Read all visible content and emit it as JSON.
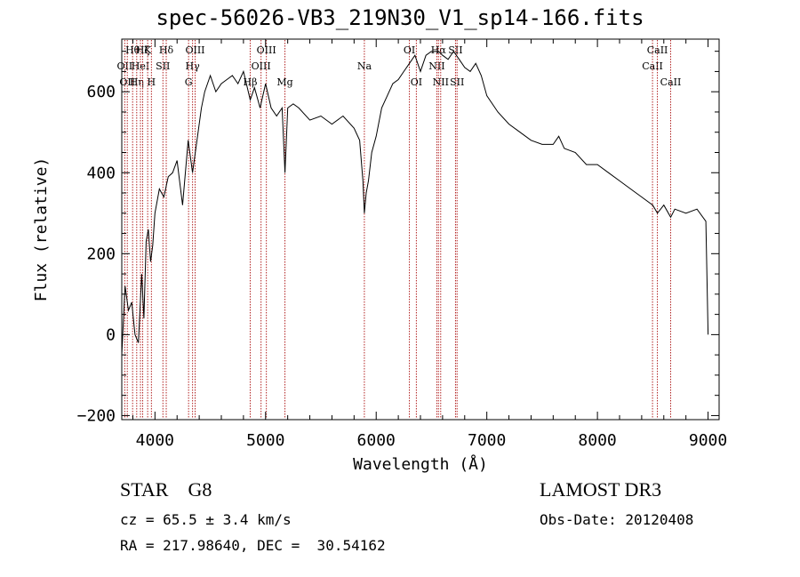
{
  "chart_data": {
    "type": "line",
    "title": "spec-56026-VB3_219N30_V1_sp14-166.fits",
    "xlabel": "Wavelength (Å)",
    "ylabel": "Flux (relative)",
    "xlim": [
      3700,
      9100
    ],
    "ylim": [
      -210,
      730
    ],
    "xticks": [
      4000,
      5000,
      6000,
      7000,
      8000,
      9000
    ],
    "yticks": [
      -200,
      0,
      200,
      400,
      600
    ],
    "grid": false,
    "line_color": "#000000",
    "marker_line_color": "#b22222",
    "series": [
      {
        "x": [
          3700,
          3730,
          3760,
          3790,
          3820,
          3850,
          3880,
          3900,
          3920,
          3940,
          3960,
          3980,
          4000,
          4040,
          4080,
          4120,
          4160,
          4200,
          4250,
          4300,
          4340,
          4380,
          4420,
          4450,
          4500,
          4550,
          4600,
          4650,
          4700,
          4750,
          4800,
          4861,
          4900,
          4950,
          5000,
          5050,
          5100,
          5150,
          5175,
          5200,
          5250,
          5300,
          5400,
          5500,
          5600,
          5700,
          5800,
          5850,
          5880,
          5893,
          5910,
          5930,
          5960,
          6000,
          6050,
          6100,
          6150,
          6200,
          6250,
          6300,
          6350,
          6400,
          6450,
          6500,
          6563,
          6600,
          6650,
          6700,
          6750,
          6800,
          6850,
          6900,
          6950,
          7000,
          7100,
          7200,
          7300,
          7400,
          7500,
          7600,
          7650,
          7700,
          7800,
          7900,
          8000,
          8100,
          8200,
          8300,
          8400,
          8500,
          8542,
          8600,
          8662,
          8700,
          8800,
          8900,
          8980,
          9000
        ],
        "y": [
          -50,
          120,
          60,
          80,
          0,
          -20,
          150,
          40,
          230,
          260,
          180,
          220,
          300,
          360,
          340,
          390,
          400,
          430,
          320,
          480,
          400,
          480,
          560,
          600,
          640,
          600,
          620,
          630,
          640,
          620,
          650,
          580,
          610,
          560,
          620,
          560,
          540,
          560,
          400,
          560,
          570,
          560,
          530,
          540,
          520,
          540,
          510,
          480,
          380,
          300,
          350,
          380,
          450,
          490,
          560,
          590,
          620,
          630,
          650,
          670,
          690,
          650,
          690,
          700,
          700,
          690,
          680,
          700,
          680,
          660,
          650,
          670,
          640,
          590,
          550,
          520,
          500,
          480,
          470,
          470,
          490,
          460,
          450,
          420,
          420,
          400,
          380,
          360,
          340,
          320,
          300,
          320,
          290,
          310,
          300,
          310,
          280,
          0
        ]
      }
    ],
    "line_markers": [
      {
        "wavelength": 3727,
        "label": "OII",
        "row": 2
      },
      {
        "wavelength": 3750,
        "label": "OII",
        "row": 3
      },
      {
        "wavelength": 3798,
        "label": "Hθ",
        "row": 1
      },
      {
        "wavelength": 3835,
        "label": "Hη",
        "row": 3
      },
      {
        "wavelength": 3869,
        "label": "HeI",
        "row": 2
      },
      {
        "wavelength": 3889,
        "label": "Hζ",
        "row": 1
      },
      {
        "wavelength": 3934,
        "label": "K",
        "row": 1
      },
      {
        "wavelength": 3968,
        "label": "H",
        "row": 3
      },
      {
        "wavelength": 4072,
        "label": "SII",
        "row": 2
      },
      {
        "wavelength": 4102,
        "label": "Hδ",
        "row": 1
      },
      {
        "wavelength": 4304,
        "label": "G",
        "row": 3
      },
      {
        "wavelength": 4340,
        "label": "Hγ",
        "row": 2
      },
      {
        "wavelength": 4363,
        "label": "OIII",
        "row": 1
      },
      {
        "wavelength": 4861,
        "label": "Hβ",
        "row": 3
      },
      {
        "wavelength": 4959,
        "label": "OIII",
        "row": 2
      },
      {
        "wavelength": 5007,
        "label": "OIII",
        "row": 1
      },
      {
        "wavelength": 5175,
        "label": "Mg",
        "row": 3
      },
      {
        "wavelength": 5893,
        "label": "Na",
        "row": 2
      },
      {
        "wavelength": 6300,
        "label": "OI",
        "row": 1
      },
      {
        "wavelength": 6363,
        "label": "OI",
        "row": 3
      },
      {
        "wavelength": 6548,
        "label": "NII",
        "row": 2
      },
      {
        "wavelength": 6563,
        "label": "Hα",
        "row": 1
      },
      {
        "wavelength": 6583,
        "label": "NII",
        "row": 3
      },
      {
        "wavelength": 6717,
        "label": "SII",
        "row": 1
      },
      {
        "wavelength": 6731,
        "label": "SII",
        "row": 3
      },
      {
        "wavelength": 8498,
        "label": "CaII",
        "row": 2
      },
      {
        "wavelength": 8542,
        "label": "CaII",
        "row": 1
      },
      {
        "wavelength": 8662,
        "label": "CaII",
        "row": 3
      }
    ]
  },
  "info": {
    "object_line": "STAR    G8",
    "survey": "LAMOST DR3",
    "cz_line": "cz = 65.5 ± 3.4 km/s",
    "obs_line": "Obs-Date: 20120408",
    "radec_line": "RA = 217.98640, DEC =  30.54162"
  }
}
